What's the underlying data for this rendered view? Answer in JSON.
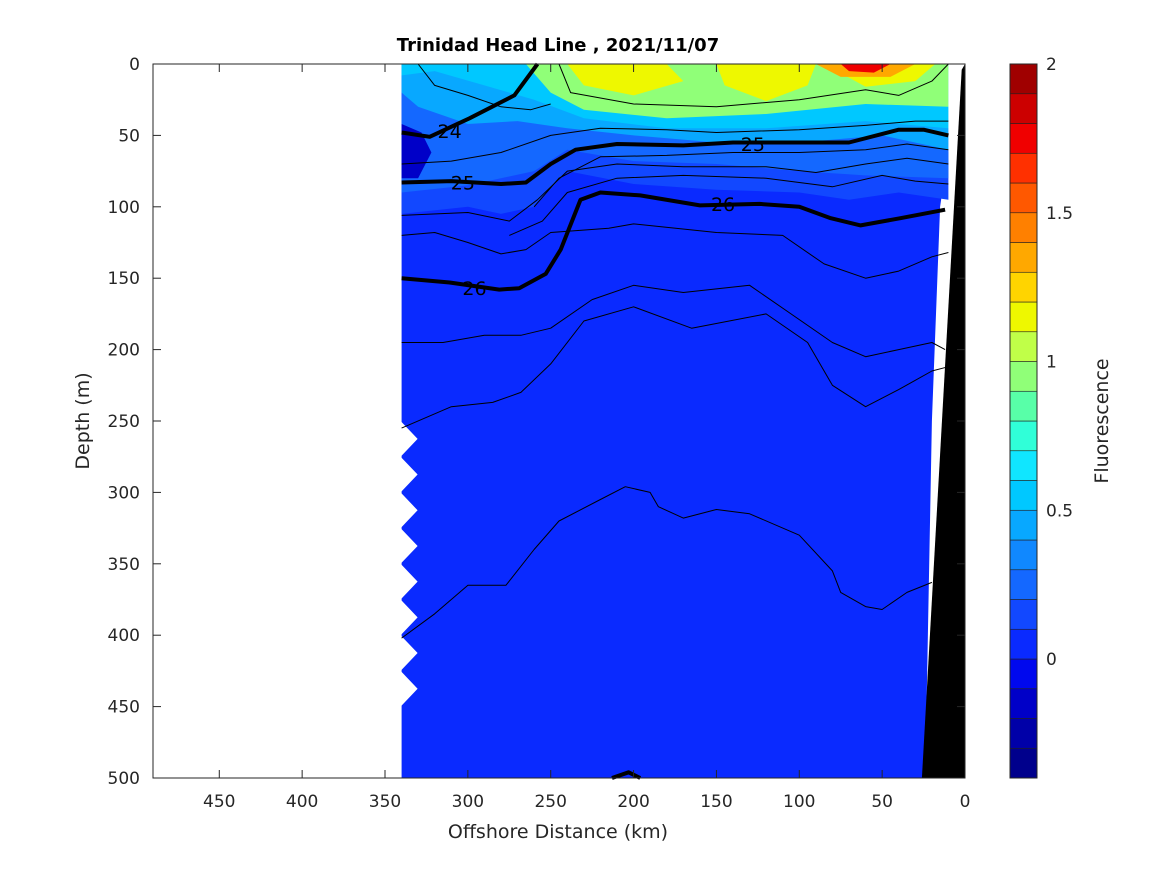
{
  "chart_data": {
    "type": "contour",
    "title": "Trinidad Head Line , 2021/11/07",
    "xlabel": "Offshore Distance (km)",
    "ylabel": "Depth (m)",
    "xlim": [
      490,
      0
    ],
    "ylim": [
      0,
      500
    ],
    "x_reversed": true,
    "y_reversed": true,
    "xticks": [
      450,
      400,
      350,
      300,
      250,
      200,
      150,
      100,
      50,
      0
    ],
    "yticks": [
      0,
      50,
      100,
      150,
      200,
      250,
      300,
      350,
      400,
      450,
      500
    ],
    "colorbar": {
      "label": "Fluorescence",
      "range": [
        -0.4,
        2.0
      ],
      "ticks": [
        0,
        0.5,
        1,
        1.5,
        2
      ],
      "tick_labels": [
        "0",
        "0.5",
        "1",
        "1.5",
        "2"
      ],
      "bin_colors": [
        "#00008c",
        "#0000a8",
        "#0000c8",
        "#0008ee",
        "#0a2aff",
        "#1248ff",
        "#1468ff",
        "#1088ff",
        "#08a8ff",
        "#00c8ff",
        "#10e6ff",
        "#30ffd8",
        "#58ffa8",
        "#90ff78",
        "#c0ff48",
        "#eef800",
        "#ffd400",
        "#ffa800",
        "#ff8000",
        "#ff5800",
        "#ff3000",
        "#f00000",
        "#cc0000",
        "#a00000"
      ]
    },
    "field_regions": [
      {
        "value": 0.05,
        "points": [
          [
            340,
            0
          ],
          [
            10,
            0
          ],
          [
            10,
            60
          ],
          [
            15,
            100
          ],
          [
            20,
            250
          ],
          [
            24,
            500
          ],
          [
            340,
            500
          ]
        ]
      },
      {
        "value": 0.15,
        "points": [
          [
            340,
            0
          ],
          [
            10,
            0
          ],
          [
            10,
            95
          ],
          [
            40,
            90
          ],
          [
            70,
            95
          ],
          [
            100,
            90
          ],
          [
            150,
            88
          ],
          [
            200,
            84
          ],
          [
            240,
            75
          ],
          [
            260,
            100
          ],
          [
            280,
            105
          ],
          [
            300,
            100
          ],
          [
            340,
            105
          ]
        ]
      },
      {
        "value": 0.25,
        "points": [
          [
            340,
            0
          ],
          [
            10,
            0
          ],
          [
            10,
            80
          ],
          [
            60,
            78
          ],
          [
            100,
            75
          ],
          [
            150,
            70
          ],
          [
            200,
            68
          ],
          [
            240,
            60
          ],
          [
            260,
            75
          ],
          [
            300,
            85
          ],
          [
            340,
            90
          ]
        ]
      },
      {
        "value": 0.45,
        "points": [
          [
            300,
            0
          ],
          [
            10,
            0
          ],
          [
            10,
            60
          ],
          [
            50,
            50
          ],
          [
            100,
            55
          ],
          [
            150,
            55
          ],
          [
            200,
            50
          ],
          [
            240,
            45
          ],
          [
            270,
            40
          ],
          [
            300,
            42
          ],
          [
            330,
            30
          ],
          [
            340,
            20
          ],
          [
            340,
            0
          ]
        ]
      },
      {
        "value": 0.55,
        "points": [
          [
            340,
            0
          ],
          [
            10,
            0
          ],
          [
            10,
            45
          ],
          [
            60,
            40
          ],
          [
            120,
            45
          ],
          [
            180,
            45
          ],
          [
            230,
            38
          ],
          [
            260,
            25
          ],
          [
            290,
            15
          ],
          [
            320,
            5
          ],
          [
            340,
            8
          ]
        ]
      },
      {
        "value": 0.95,
        "points": [
          [
            265,
            0
          ],
          [
            10,
            0
          ],
          [
            10,
            30
          ],
          [
            60,
            28
          ],
          [
            120,
            35
          ],
          [
            180,
            38
          ],
          [
            230,
            32
          ],
          [
            250,
            20
          ]
        ]
      },
      {
        "value": 1.15,
        "points": [
          [
            240,
            0
          ],
          [
            180,
            0
          ],
          [
            170,
            12
          ],
          [
            200,
            22
          ],
          [
            230,
            15
          ]
        ]
      },
      {
        "value": 1.15,
        "points": [
          [
            150,
            0
          ],
          [
            90,
            0
          ],
          [
            95,
            15
          ],
          [
            120,
            26
          ],
          [
            145,
            15
          ]
        ]
      },
      {
        "value": 1.15,
        "points": [
          [
            85,
            0
          ],
          [
            18,
            0
          ],
          [
            30,
            12
          ],
          [
            60,
            16
          ]
        ]
      },
      {
        "value": 1.35,
        "points": [
          [
            90,
            0
          ],
          [
            30,
            0
          ],
          [
            45,
            9
          ],
          [
            75,
            9
          ]
        ]
      },
      {
        "value": 1.75,
        "points": [
          [
            75,
            0
          ],
          [
            45,
            0
          ],
          [
            55,
            6
          ],
          [
            70,
            5
          ]
        ]
      },
      {
        "value": -0.15,
        "points": [
          [
            340,
            42
          ],
          [
            328,
            48
          ],
          [
            322,
            62
          ],
          [
            330,
            80
          ],
          [
            340,
            80
          ]
        ]
      }
    ],
    "contours": [
      {
        "level": 24,
        "label": "24",
        "thick": true,
        "label_at": [
          311,
          47
        ],
        "points": [
          [
            258,
            0
          ],
          [
            272,
            22
          ],
          [
            299,
            38
          ],
          [
            323,
            51
          ],
          [
            340,
            48
          ]
        ]
      },
      {
        "level": 25,
        "label": "25",
        "thick": true,
        "label_at": [
          303,
          83
        ],
        "points": [
          [
            340,
            83
          ],
          [
            310,
            82
          ],
          [
            280,
            84
          ],
          [
            265,
            83
          ],
          [
            250,
            70
          ],
          [
            235,
            60
          ],
          [
            210,
            56
          ],
          [
            170,
            57
          ],
          [
            140,
            55
          ],
          [
            100,
            55
          ],
          [
            70,
            55
          ],
          [
            40,
            46
          ],
          [
            25,
            46
          ],
          [
            10,
            50
          ]
        ]
      },
      {
        "level": 25,
        "label": "25",
        "thick": true,
        "label_at": [
          128,
          56
        ],
        "points": []
      },
      {
        "level": 26,
        "label": "26",
        "thick": true,
        "label_at": [
          296,
          157
        ],
        "points": [
          [
            340,
            150
          ],
          [
            311,
            153
          ],
          [
            281,
            158
          ],
          [
            269,
            157
          ],
          [
            253,
            147
          ],
          [
            244,
            130
          ],
          [
            232,
            95
          ],
          [
            220,
            90
          ],
          [
            196,
            92
          ],
          [
            160,
            99
          ],
          [
            124,
            98
          ],
          [
            100,
            100
          ],
          [
            81,
            108
          ],
          [
            63,
            113
          ],
          [
            39,
            108
          ],
          [
            12,
            102
          ]
        ]
      },
      {
        "level": 26,
        "label": "26",
        "thick": true,
        "label_at": [
          146,
          98
        ],
        "points": []
      },
      {
        "level": 26.2,
        "label": "",
        "thick": true,
        "points": [
          [
            213,
            500
          ],
          [
            203,
            496
          ],
          [
            196,
            500
          ]
        ]
      },
      {
        "level": 24.5,
        "label": "",
        "thick": false,
        "points": [
          [
            330,
            0
          ],
          [
            320,
            15
          ],
          [
            300,
            22
          ],
          [
            280,
            30
          ],
          [
            262,
            32
          ],
          [
            250,
            28
          ]
        ]
      },
      {
        "level": 24.6,
        "label": "",
        "thick": false,
        "points": [
          [
            245,
            0
          ],
          [
            238,
            20
          ],
          [
            200,
            28
          ],
          [
            150,
            30
          ],
          [
            100,
            25
          ],
          [
            60,
            18
          ],
          [
            40,
            22
          ],
          [
            20,
            12
          ],
          [
            10,
            0
          ]
        ]
      },
      {
        "level": 24.8,
        "label": "",
        "thick": false,
        "points": [
          [
            340,
            70
          ],
          [
            310,
            68
          ],
          [
            280,
            62
          ],
          [
            250,
            50
          ],
          [
            220,
            45
          ],
          [
            180,
            46
          ],
          [
            150,
            48
          ],
          [
            100,
            46
          ],
          [
            60,
            43
          ],
          [
            30,
            40
          ],
          [
            10,
            40
          ]
        ]
      },
      {
        "level": 25.2,
        "label": "",
        "thick": false,
        "points": [
          [
            260,
            100
          ],
          [
            245,
            80
          ],
          [
            220,
            65
          ],
          [
            180,
            64
          ],
          [
            140,
            62
          ],
          [
            100,
            62
          ],
          [
            60,
            60
          ],
          [
            35,
            56
          ],
          [
            10,
            60
          ]
        ]
      },
      {
        "level": 25.4,
        "label": "",
        "thick": false,
        "points": [
          [
            340,
            106
          ],
          [
            300,
            104
          ],
          [
            275,
            110
          ],
          [
            258,
            95
          ],
          [
            240,
            75
          ],
          [
            210,
            70
          ],
          [
            170,
            72
          ],
          [
            120,
            72
          ],
          [
            90,
            76
          ],
          [
            60,
            70
          ],
          [
            35,
            66
          ],
          [
            10,
            70
          ]
        ]
      },
      {
        "level": 25.6,
        "label": "",
        "thick": false,
        "points": [
          [
            275,
            120
          ],
          [
            255,
            110
          ],
          [
            240,
            90
          ],
          [
            210,
            80
          ],
          [
            170,
            78
          ],
          [
            120,
            80
          ],
          [
            80,
            86
          ],
          [
            50,
            78
          ],
          [
            30,
            82
          ],
          [
            10,
            84
          ]
        ]
      },
      {
        "level": 26.1,
        "label": "",
        "thick": false,
        "points": [
          [
            340,
            120
          ],
          [
            320,
            118
          ],
          [
            300,
            125
          ],
          [
            280,
            133
          ],
          [
            265,
            130
          ],
          [
            250,
            118
          ],
          [
            215,
            115
          ],
          [
            200,
            112
          ],
          [
            150,
            118
          ],
          [
            110,
            120
          ],
          [
            85,
            140
          ],
          [
            60,
            150
          ],
          [
            40,
            145
          ],
          [
            20,
            135
          ],
          [
            10,
            132
          ]
        ]
      },
      {
        "level": 26.2,
        "label": "",
        "thick": false,
        "points": [
          [
            340,
            195
          ],
          [
            315,
            195
          ],
          [
            290,
            190
          ],
          [
            268,
            190
          ],
          [
            250,
            185
          ],
          [
            225,
            165
          ],
          [
            200,
            155
          ],
          [
            170,
            160
          ],
          [
            130,
            155
          ],
          [
            105,
            175
          ],
          [
            80,
            195
          ],
          [
            60,
            205
          ],
          [
            40,
            200
          ],
          [
            20,
            195
          ],
          [
            12,
            200
          ]
        ]
      },
      {
        "level": 26.3,
        "label": "",
        "thick": false,
        "points": [
          [
            340,
            255
          ],
          [
            310,
            240
          ],
          [
            285,
            237
          ],
          [
            268,
            230
          ],
          [
            250,
            210
          ],
          [
            230,
            180
          ],
          [
            200,
            170
          ],
          [
            165,
            185
          ],
          [
            120,
            175
          ],
          [
            95,
            195
          ],
          [
            80,
            225
          ],
          [
            60,
            240
          ],
          [
            40,
            228
          ],
          [
            20,
            215
          ],
          [
            10,
            212
          ]
        ]
      },
      {
        "level": 26.5,
        "label": "",
        "thick": false,
        "points": [
          [
            340,
            402
          ],
          [
            320,
            385
          ],
          [
            300,
            365
          ],
          [
            290,
            365
          ],
          [
            277,
            365
          ],
          [
            260,
            340
          ],
          [
            245,
            320
          ],
          [
            220,
            305
          ],
          [
            205,
            296
          ],
          [
            190,
            300
          ],
          [
            185,
            310
          ],
          [
            170,
            318
          ],
          [
            150,
            312
          ],
          [
            130,
            315
          ],
          [
            100,
            330
          ],
          [
            80,
            355
          ],
          [
            75,
            370
          ],
          [
            60,
            380
          ],
          [
            50,
            382
          ],
          [
            35,
            370
          ],
          [
            20,
            363
          ]
        ]
      }
    ]
  }
}
